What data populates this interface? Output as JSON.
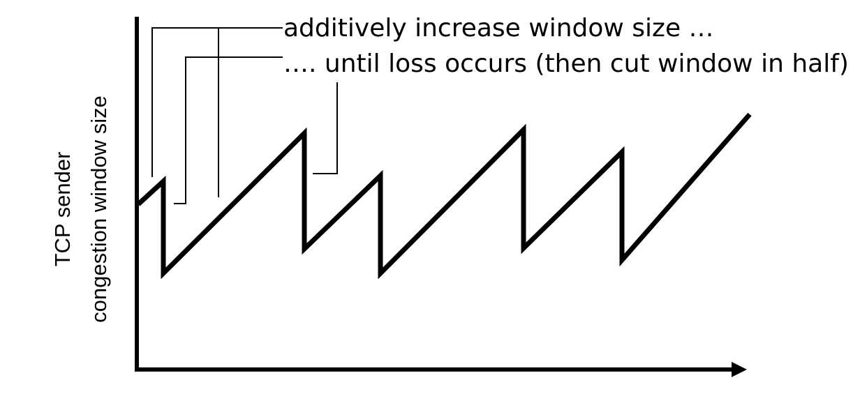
{
  "axis": {
    "y_label_line1": "TCP sender",
    "y_label_line2": "congestion window size"
  },
  "annotations": {
    "increase": "additively increase window size …",
    "loss": "…. until loss occurs (then cut window in half)"
  },
  "colors": {
    "ink": "#000000",
    "background": "#ffffff"
  }
}
